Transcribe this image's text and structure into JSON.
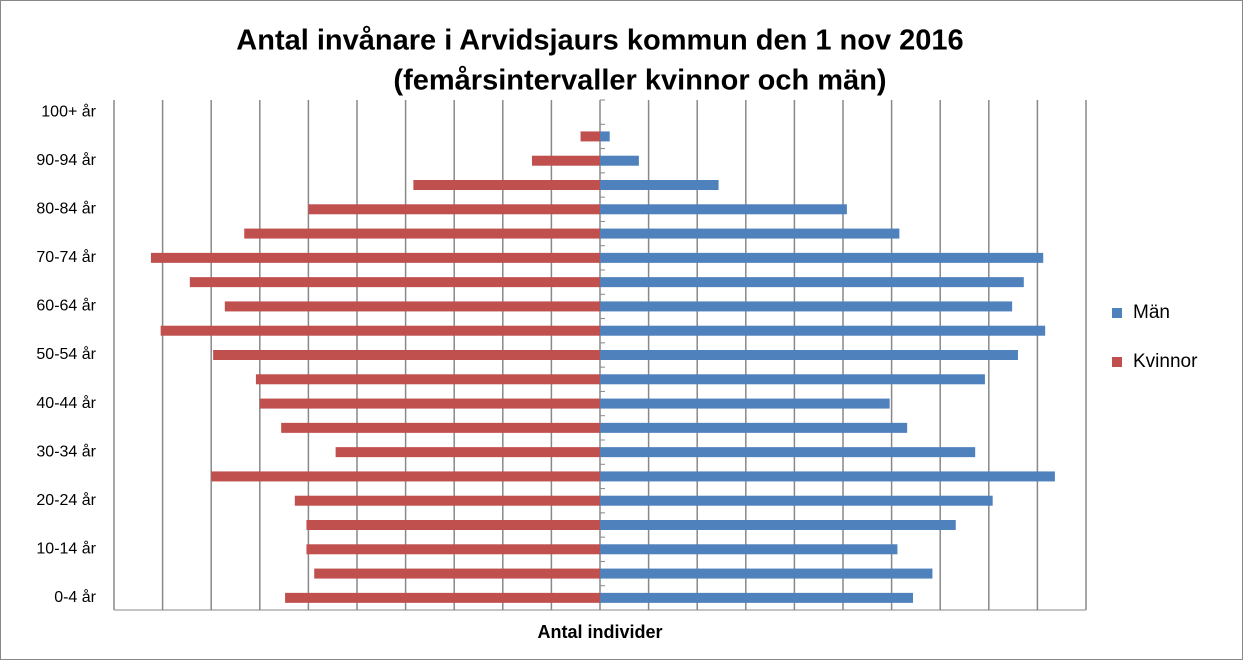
{
  "chart_data": {
    "type": "pyramid",
    "title": "Antal invånare i Arvidsjaurs kommun den 1 nov 2016",
    "subtitle": "(femårsintervaller kvinnor och män)",
    "x_label": "Antal individer",
    "categories": [
      "0-4 år",
      null,
      "10-14 år",
      null,
      "20-24 år",
      null,
      "30-34 år",
      null,
      "40-44 år",
      null,
      "50-54 år",
      null,
      "60-64 år",
      null,
      "70-74 år",
      null,
      "80-84 år",
      null,
      "90-94 år",
      null,
      "100+ år"
    ],
    "series": [
      {
        "name": "Män",
        "color": "#4f81bd",
        "side": "right",
        "values": [
          161,
          171,
          153,
          183,
          202,
          234,
          193,
          158,
          149,
          198,
          215,
          229,
          212,
          218,
          228,
          154,
          127,
          61,
          20,
          5,
          0
        ]
      },
      {
        "name": "Kvinnor",
        "color": "#c0504d",
        "side": "left",
        "values": [
          162,
          147,
          151,
          151,
          157,
          200,
          136,
          164,
          175,
          177,
          199,
          226,
          193,
          211,
          231,
          183,
          150,
          96,
          35,
          10,
          0
        ]
      }
    ],
    "xlim": [
      -250,
      250
    ],
    "xticks": [
      -250,
      -225,
      -200,
      -175,
      -150,
      -125,
      -100,
      -75,
      -50,
      -25,
      0,
      25,
      50,
      75,
      100,
      125,
      150,
      175,
      200,
      225,
      250
    ],
    "grid": true,
    "legend": "right"
  }
}
